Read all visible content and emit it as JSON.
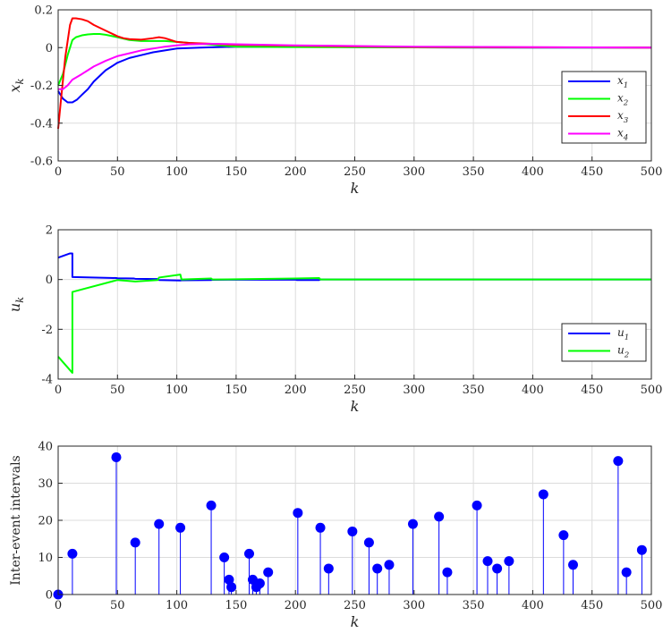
{
  "chart_data": [
    {
      "type": "line",
      "xlabel": "k",
      "ylabel": "x_k",
      "ylabel_main": "x",
      "ylabel_sub": "k",
      "xlim": [
        0,
        500
      ],
      "ylim": [
        -0.6,
        0.2
      ],
      "xticks": [
        "0",
        "50",
        "100",
        "150",
        "200",
        "250",
        "300",
        "350",
        "400",
        "450",
        "500"
      ],
      "yticks": [
        "-0.6",
        "-0.4",
        "-0.2",
        "0",
        "0.2"
      ],
      "grid": true,
      "legend_position": "right",
      "series": [
        {
          "name": "x1",
          "legend_main": "x",
          "legend_sub": "1",
          "color": "#0000ff",
          "x": [
            0,
            4,
            8,
            12,
            16,
            20,
            25,
            30,
            40,
            50,
            60,
            70,
            80,
            90,
            100,
            120,
            150,
            200,
            250,
            300,
            400,
            500
          ],
          "y": [
            -0.23,
            -0.27,
            -0.29,
            -0.29,
            -0.275,
            -0.25,
            -0.22,
            -0.18,
            -0.12,
            -0.08,
            -0.055,
            -0.04,
            -0.025,
            -0.015,
            -0.005,
            0.0,
            0.005,
            0.005,
            0.003,
            0.001,
            0.0,
            0.0
          ]
        },
        {
          "name": "x2",
          "legend_main": "x",
          "legend_sub": "2",
          "color": "#00ff00",
          "x": [
            0,
            4,
            8,
            12,
            15,
            20,
            25,
            30,
            35,
            40,
            50,
            60,
            70,
            80,
            90,
            100,
            120,
            150,
            200,
            300,
            500
          ],
          "y": [
            -0.2,
            -0.14,
            -0.04,
            0.04,
            0.055,
            0.065,
            0.07,
            0.072,
            0.072,
            0.068,
            0.055,
            0.04,
            0.035,
            0.035,
            0.035,
            0.03,
            0.02,
            0.005,
            0.003,
            0.001,
            0.0
          ]
        },
        {
          "name": "x3",
          "legend_main": "x",
          "legend_sub": "3",
          "color": "#ff0000",
          "x": [
            0,
            2,
            6,
            10,
            12,
            15,
            20,
            25,
            30,
            40,
            50,
            55,
            60,
            70,
            80,
            85,
            90,
            95,
            100,
            110,
            130,
            150,
            200,
            300,
            500
          ],
          "y": [
            -0.43,
            -0.3,
            -0.05,
            0.12,
            0.155,
            0.155,
            0.15,
            0.14,
            0.12,
            0.09,
            0.06,
            0.05,
            0.045,
            0.042,
            0.05,
            0.055,
            0.05,
            0.04,
            0.03,
            0.025,
            0.02,
            0.015,
            0.01,
            0.003,
            0.0
          ]
        },
        {
          "name": "x4",
          "legend_main": "x",
          "legend_sub": "4",
          "color": "#ff00ff",
          "x": [
            0,
            4,
            8,
            12,
            16,
            20,
            25,
            30,
            40,
            50,
            60,
            70,
            80,
            90,
            100,
            110,
            130,
            150,
            200,
            300,
            500
          ],
          "y": [
            -0.22,
            -0.22,
            -0.2,
            -0.17,
            -0.155,
            -0.14,
            -0.12,
            -0.1,
            -0.07,
            -0.045,
            -0.03,
            -0.015,
            -0.005,
            0.005,
            0.012,
            0.017,
            0.02,
            0.018,
            0.012,
            0.005,
            0.0
          ]
        }
      ]
    },
    {
      "type": "line",
      "xlabel": "k",
      "ylabel": "u_k",
      "ylabel_main": "u",
      "ylabel_sub": "k",
      "xlim": [
        0,
        500
      ],
      "ylim": [
        -4,
        2
      ],
      "xticks": [
        "0",
        "50",
        "100",
        "150",
        "200",
        "250",
        "300",
        "350",
        "400",
        "450",
        "500"
      ],
      "yticks": [
        "-4",
        "-2",
        "0",
        "2"
      ],
      "grid": true,
      "legend_position": "bottom-right",
      "series": [
        {
          "name": "u1",
          "legend_main": "u",
          "legend_sub": "1",
          "color": "#0000ff",
          "x": [
            0,
            10,
            12,
            12,
            49,
            50,
            64,
            65,
            84,
            85,
            103,
            104,
            129,
            130,
            200,
            201,
            220,
            221,
            320,
            500
          ],
          "y": [
            0.88,
            1.05,
            1.05,
            0.1,
            0.06,
            0.05,
            0.04,
            0.03,
            0.02,
            -0.02,
            -0.04,
            -0.03,
            -0.02,
            -0.01,
            -0.005,
            -0.02,
            -0.02,
            0.0,
            0.0,
            0.0
          ]
        },
        {
          "name": "u2",
          "legend_main": "u",
          "legend_sub": "2",
          "color": "#00ff00",
          "x": [
            0,
            12,
            12,
            50,
            65,
            84,
            85,
            103,
            104,
            129,
            130,
            200,
            220,
            221,
            320,
            500
          ],
          "y": [
            -3.1,
            -3.75,
            -0.5,
            -0.02,
            -0.08,
            -0.02,
            0.08,
            0.2,
            0.0,
            0.04,
            0.0,
            0.04,
            0.06,
            0.0,
            0.0,
            0.0
          ]
        }
      ]
    },
    {
      "type": "stem",
      "xlabel": "k",
      "ylabel": "Inter-event intervals",
      "xlim": [
        0,
        500
      ],
      "ylim": [
        0,
        40
      ],
      "xticks": [
        "0",
        "50",
        "100",
        "150",
        "200",
        "250",
        "300",
        "350",
        "400",
        "450",
        "500"
      ],
      "yticks": [
        "0",
        "10",
        "20",
        "30",
        "40"
      ],
      "grid": true,
      "color": "#0000ff",
      "x": [
        0,
        12,
        49,
        65,
        85,
        103,
        129,
        140,
        144,
        146,
        161,
        164,
        167,
        170,
        177,
        202,
        221,
        228,
        248,
        262,
        269,
        279,
        299,
        321,
        328,
        353,
        362,
        370,
        380,
        409,
        426,
        434,
        472,
        479,
        492
      ],
      "y": [
        0,
        11,
        37,
        14,
        19,
        18,
        24,
        10,
        4,
        2,
        11,
        4,
        2,
        3,
        6,
        22,
        18,
        7,
        17,
        14,
        7,
        8,
        19,
        21,
        6,
        24,
        9,
        7,
        9,
        27,
        16,
        8,
        36,
        6,
        12
      ]
    }
  ]
}
